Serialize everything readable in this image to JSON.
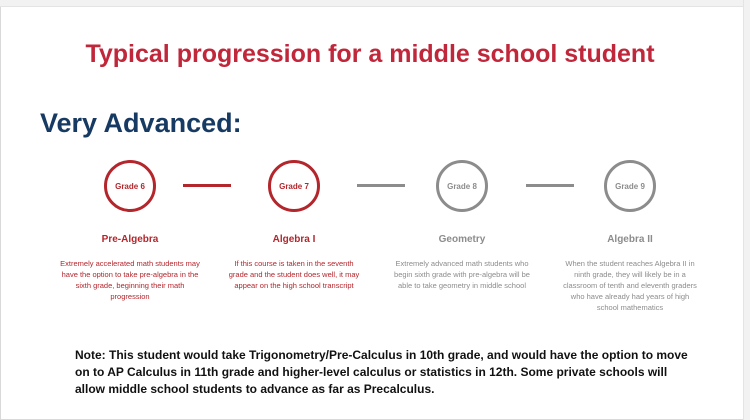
{
  "title": "Typical progression for a middle school student",
  "subtitle": "Very Advanced:",
  "steps": [
    {
      "grade": "Grade 6",
      "course": "Pre-Algebra",
      "description": "Extremely accelerated math students may have the option to take pre-algebra in the sixth grade, beginning their math progression"
    },
    {
      "grade": "Grade 7",
      "course": "Algebra I",
      "description": "If this course is taken in the seventh grade and the student does well, it may appear on the high school transcript"
    },
    {
      "grade": "Grade 8",
      "course": "Geometry",
      "description": "Extremely advanced math students who begin sixth grade with pre-algebra will be able to take geometry in middle school"
    },
    {
      "grade": "Grade 9",
      "course": "Algebra II",
      "description": "When the student reaches Algebra II in ninth grade, they will likely be in a classroom of tenth and eleventh graders who have already had years of high school mathematics"
    }
  ],
  "note": "Note: This student would take Trigonometry/Pre-Calculus in 10th grade, and would have the option to move on to AP Calculus in 11th grade and higher-level calculus or statistics in 12th. Some private schools will allow middle school students to advance as far as Precalculus.",
  "colors": {
    "title": "#c0273a",
    "subtitle": "#173a63",
    "active": "#b3262c",
    "inactive": "#8c8c8c"
  }
}
